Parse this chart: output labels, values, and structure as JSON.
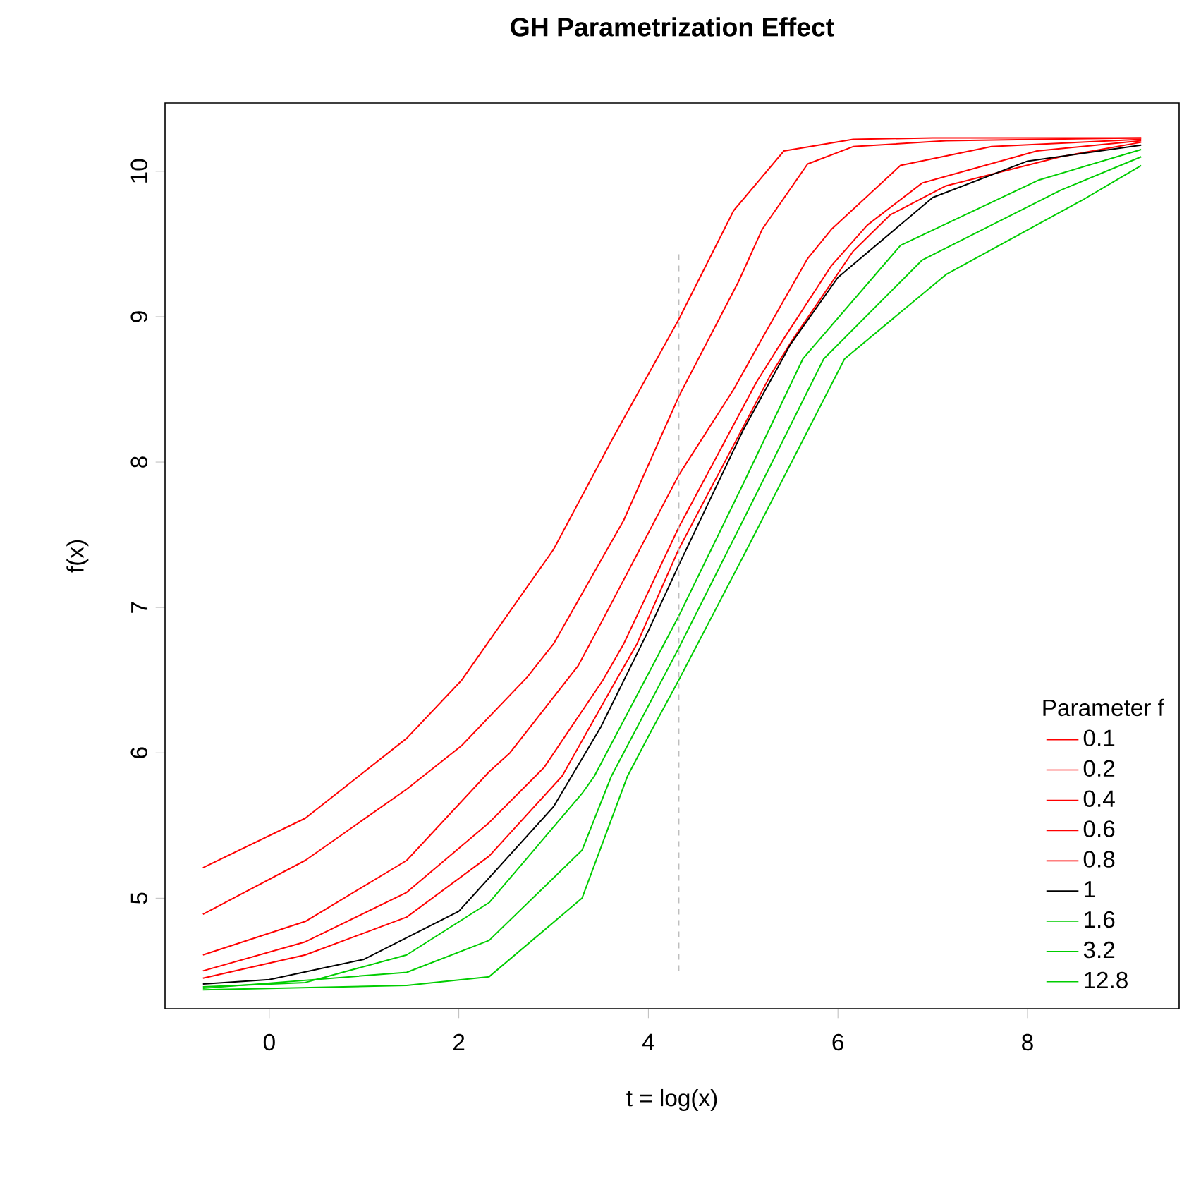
{
  "chart_data": {
    "type": "line",
    "title": "GH Parametrization Effect",
    "xlabel": "t = log(x)",
    "ylabel": "f(x)",
    "legend_title": "Parameter f",
    "legend": "bottom right",
    "marker": "none",
    "line_style": "solid",
    "xlim": [
      -1.1,
      9.6
    ],
    "ylim": [
      4.24,
      10.47
    ],
    "xticks": [
      0,
      2,
      4,
      6,
      8
    ],
    "yticks": [
      5,
      6,
      7,
      8,
      9,
      10
    ],
    "series": [
      {
        "name": "0.1",
        "color": "#ff0000",
        "x": [
          -0.7,
          0.38,
          1.45,
          2.03,
          3.0,
          3.63,
          4.32,
          4.9,
          5.43,
          6.16,
          7.0,
          9.2
        ],
        "values": [
          5.21,
          5.55,
          6.1,
          6.5,
          7.4,
          8.17,
          8.98,
          9.73,
          10.14,
          10.22,
          10.23,
          10.23
        ]
      },
      {
        "name": "0.2",
        "color": "#ff0000",
        "x": [
          -0.7,
          0.38,
          1.45,
          2.03,
          2.72,
          3.0,
          3.74,
          4.32,
          4.95,
          5.2,
          5.68,
          6.16,
          7.14,
          9.2
        ],
        "values": [
          4.89,
          5.26,
          5.75,
          6.05,
          6.52,
          6.75,
          7.6,
          8.45,
          9.24,
          9.6,
          10.05,
          10.17,
          10.21,
          10.23
        ]
      },
      {
        "name": "0.4",
        "color": "#ff0000",
        "x": [
          -0.7,
          0.38,
          1.45,
          2.32,
          2.54,
          3.26,
          3.49,
          4.32,
          4.9,
          5.2,
          5.68,
          5.93,
          6.66,
          7.62,
          9.2
        ],
        "values": [
          4.61,
          4.84,
          5.26,
          5.87,
          6.0,
          6.6,
          6.88,
          7.91,
          8.5,
          8.85,
          9.4,
          9.6,
          10.04,
          10.17,
          10.22
        ]
      },
      {
        "name": "0.6",
        "color": "#ff0000",
        "x": [
          -0.7,
          0.38,
          1.45,
          2.32,
          2.9,
          3.52,
          3.74,
          4.32,
          5.14,
          5.43,
          5.93,
          6.31,
          6.89,
          8.1,
          9.2
        ],
        "values": [
          4.5,
          4.7,
          5.04,
          5.52,
          5.9,
          6.5,
          6.75,
          7.55,
          8.55,
          8.85,
          9.35,
          9.63,
          9.92,
          10.14,
          10.21
        ]
      },
      {
        "name": "0.8",
        "color": "#ff0000",
        "x": [
          -0.7,
          0.38,
          1.45,
          2.32,
          3.09,
          3.66,
          3.88,
          4.32,
          5.29,
          5.53,
          6.16,
          6.55,
          7.14,
          8.35,
          9.2
        ],
        "values": [
          4.45,
          4.61,
          4.87,
          5.29,
          5.84,
          6.5,
          6.75,
          7.4,
          8.6,
          8.85,
          9.45,
          9.7,
          9.9,
          10.1,
          10.2
        ]
      },
      {
        "name": "1",
        "color": "#000000",
        "x": [
          -0.7,
          0.0,
          1.0,
          2.0,
          3.0,
          3.5,
          4.0,
          4.32,
          5.0,
          5.5,
          6.0,
          7.0,
          8.0,
          9.2
        ],
        "values": [
          4.41,
          4.44,
          4.58,
          4.91,
          5.63,
          6.18,
          6.84,
          7.29,
          8.22,
          8.81,
          9.27,
          9.82,
          10.07,
          10.18
        ]
      },
      {
        "name": "1.6",
        "color": "#00cd00",
        "x": [
          -0.7,
          0.38,
          1.45,
          2.32,
          3.3,
          3.43,
          4.32,
          5.0,
          5.63,
          6.66,
          8.12,
          9.2
        ],
        "values": [
          4.39,
          4.42,
          4.61,
          4.97,
          5.72,
          5.84,
          6.94,
          7.85,
          8.71,
          9.49,
          9.94,
          10.15
        ]
      },
      {
        "name": "3.2",
        "color": "#00cd00",
        "x": [
          -0.7,
          1.45,
          2.32,
          3.3,
          3.61,
          4.32,
          5.0,
          5.85,
          6.89,
          8.35,
          9.2
        ],
        "values": [
          4.38,
          4.49,
          4.71,
          5.33,
          5.84,
          6.72,
          7.6,
          8.71,
          9.39,
          9.87,
          10.1
        ]
      },
      {
        "name": "12.8",
        "color": "#00cd00",
        "x": [
          -0.7,
          1.45,
          2.32,
          3.3,
          3.78,
          4.03,
          4.32,
          5.0,
          6.07,
          7.14,
          8.6,
          9.2
        ],
        "values": [
          4.37,
          4.4,
          4.46,
          5.0,
          5.84,
          6.15,
          6.5,
          7.35,
          8.71,
          9.29,
          9.81,
          10.04
        ]
      },
      {
        "type": "line",
        "color": "#bebebe",
        "line_style": "dashed",
        "x": [
          4.32,
          4.32
        ],
        "values": [
          4.5,
          9.45
        ]
      }
    ]
  }
}
